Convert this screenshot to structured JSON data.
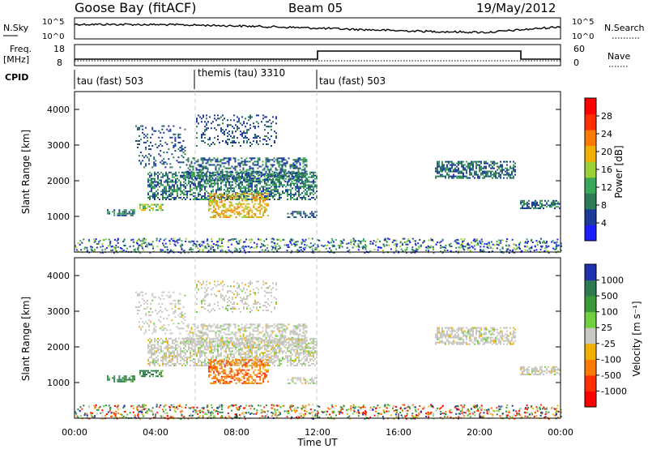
{
  "header": {
    "station": "Goose Bay (fitACF)",
    "beam": "Beam 05",
    "date": "19/May/2012"
  },
  "noise_panel": {
    "left_label": "N.Sky",
    "right_label": "N.Search",
    "left_ticks": [
      "10^5",
      "10^0"
    ],
    "right_ticks": [
      "10^5",
      "10^0"
    ]
  },
  "freq_panel": {
    "left_label_1": "Freq.",
    "left_label_2": "[MHz]",
    "right_label": "Nave",
    "left_ticks": [
      "18",
      "8"
    ],
    "right_ticks": [
      "60",
      "0"
    ]
  },
  "cpid_panel": {
    "label": "CPID",
    "segments": [
      {
        "label": "tau (fast) 503",
        "start_hour": 0
      },
      {
        "label": "themis (tau) 3310",
        "start_hour": 6
      },
      {
        "label": "tau (fast) 503",
        "start_hour": 12
      }
    ]
  },
  "chart_data": [
    {
      "type": "heatmap",
      "name": "Power",
      "ylabel": "Slant Range [km]",
      "yticks": [
        "1000",
        "2000",
        "3000",
        "4000"
      ],
      "ylim": [
        0,
        4500
      ],
      "xlim": [
        0,
        24
      ],
      "colorbar_label": "Power [dB]",
      "colorbar_ticks": [
        "4",
        "8",
        "12",
        "16",
        "20",
        "24",
        "28"
      ],
      "colors": [
        "#1c1cff",
        "#1c3a9a",
        "#2d7a55",
        "#3aa85a",
        "#9dd035",
        "#f0b000",
        "#ff7a00",
        "#ff2d00",
        "#ff0000"
      ]
    },
    {
      "type": "heatmap",
      "name": "Velocity",
      "ylabel": "Slant Range [km]",
      "yticks": [
        "1000",
        "2000",
        "3000",
        "4000"
      ],
      "ylim": [
        0,
        4500
      ],
      "xlim": [
        0,
        24
      ],
      "xlabel": "Time UT",
      "xticks": [
        "00:00",
        "04:00",
        "08:00",
        "12:00",
        "16:00",
        "20:00",
        "00:00"
      ],
      "colorbar_label": "Velocity [m s⁻¹]",
      "colorbar_ticks": [
        "1000",
        "500",
        "100",
        "25",
        "-25",
        "-100",
        "-500",
        "-1000"
      ],
      "colors": [
        "#2030b0",
        "#2d7a4e",
        "#3a9a3a",
        "#6fd040",
        "#c8c8c0",
        "#f0b000",
        "#ff7a00",
        "#ff3000",
        "#ff0000"
      ]
    }
  ]
}
